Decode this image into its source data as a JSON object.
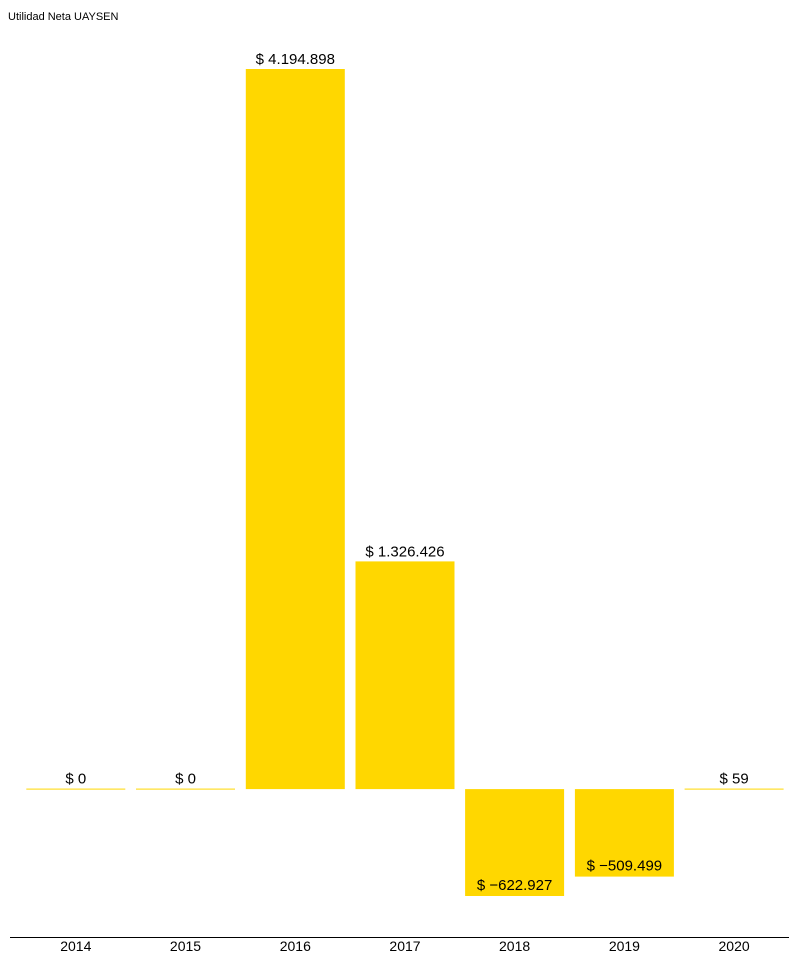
{
  "chart_data": {
    "type": "bar",
    "title": "Utilidad Neta UAYSEN",
    "categories": [
      "2014",
      "2015",
      "2016",
      "2017",
      "2018",
      "2019",
      "2020"
    ],
    "values": [
      0,
      0,
      4194898,
      1326426,
      -622927,
      -509499,
      59
    ],
    "value_labels": [
      "$ 0",
      "$ 0",
      "$ 4.194.898",
      "$ 1.326.426",
      "$ −622.927",
      "$ −509.499",
      "$ 59"
    ],
    "xlabel": "",
    "ylabel": "",
    "ylim": [
      -622927,
      4194898
    ],
    "grid": false,
    "legend": "none",
    "colors": {
      "bar": "#FFD700",
      "axis": "#000000",
      "text": "#000000"
    }
  }
}
